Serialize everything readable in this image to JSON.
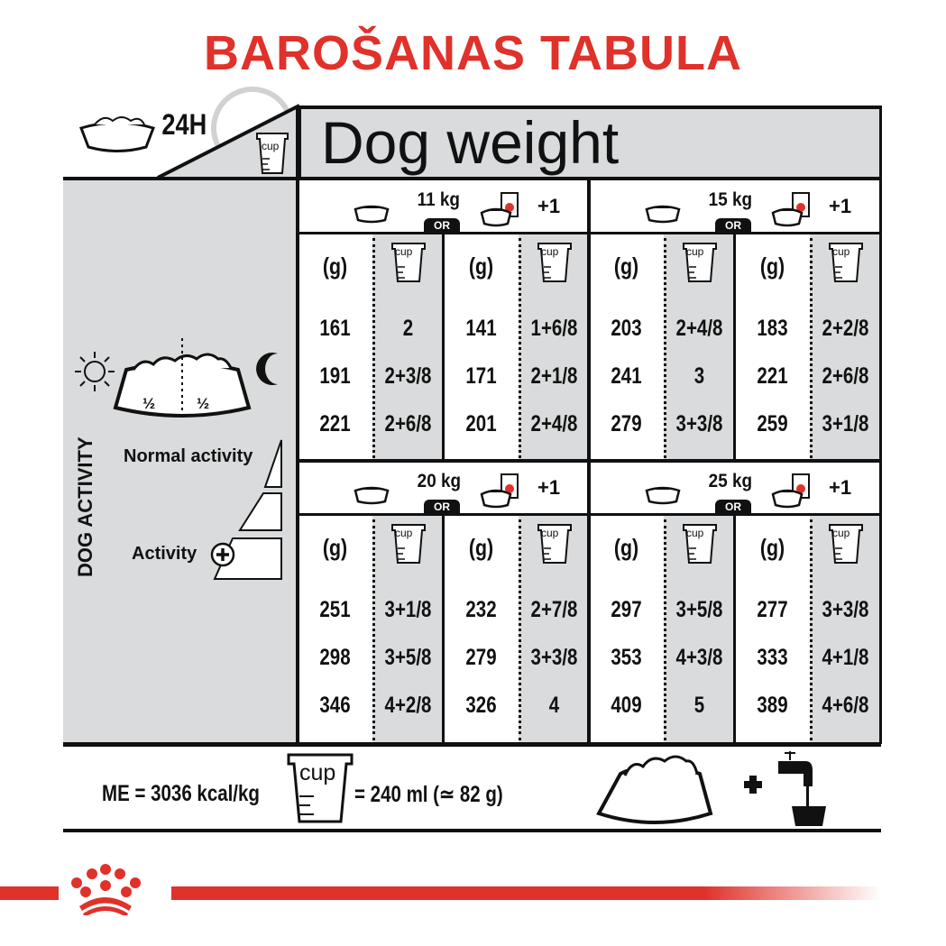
{
  "title": "BAROŠANAS TABULA",
  "header": {
    "time_label": "24H",
    "cup_label": "cup",
    "dog_weight_label": "Dog weight"
  },
  "left_panel": {
    "half_label": "½",
    "vertical_label": "DOG ACTIVITY",
    "normal_activity": "Normal activity",
    "activity_plus": "Activity"
  },
  "table": {
    "or_label": "OR",
    "plus_one": "+1",
    "gram_header": "(g)",
    "cup_header": "cup",
    "blocks": [
      {
        "weight": "11 kg",
        "rows": [
          [
            "161",
            "2",
            "141",
            "1+6/8"
          ],
          [
            "191",
            "2+3/8",
            "171",
            "2+1/8"
          ],
          [
            "221",
            "2+6/8",
            "201",
            "2+4/8"
          ]
        ]
      },
      {
        "weight": "15 kg",
        "rows": [
          [
            "203",
            "2+4/8",
            "183",
            "2+2/8"
          ],
          [
            "241",
            "3",
            "221",
            "2+6/8"
          ],
          [
            "279",
            "3+3/8",
            "259",
            "3+1/8"
          ]
        ]
      },
      {
        "weight": "20 kg",
        "rows": [
          [
            "251",
            "3+1/8",
            "232",
            "2+7/8"
          ],
          [
            "298",
            "3+5/8",
            "279",
            "3+3/8"
          ],
          [
            "346",
            "4+2/8",
            "326",
            "4"
          ]
        ]
      },
      {
        "weight": "25 kg",
        "rows": [
          [
            "297",
            "3+5/8",
            "277",
            "3+3/8"
          ],
          [
            "353",
            "4+3/8",
            "333",
            "4+1/8"
          ],
          [
            "409",
            "5",
            "389",
            "4+6/8"
          ]
        ]
      }
    ]
  },
  "footer": {
    "me": "ME = 3036 kcal/kg",
    "cup_label": "cup",
    "cup_equiv": "= 240 ml (≃ 82 g)"
  },
  "colors": {
    "brand_red": "#e0312a",
    "panel_gray": "#d9dbdc"
  },
  "icons": [
    "bowl-icon",
    "clock-icon",
    "cup-icon",
    "wet-food-pouch-icon",
    "sun-icon",
    "moon-icon",
    "plus-circle-icon",
    "water-tap-icon",
    "royal-canin-crown-logo"
  ]
}
